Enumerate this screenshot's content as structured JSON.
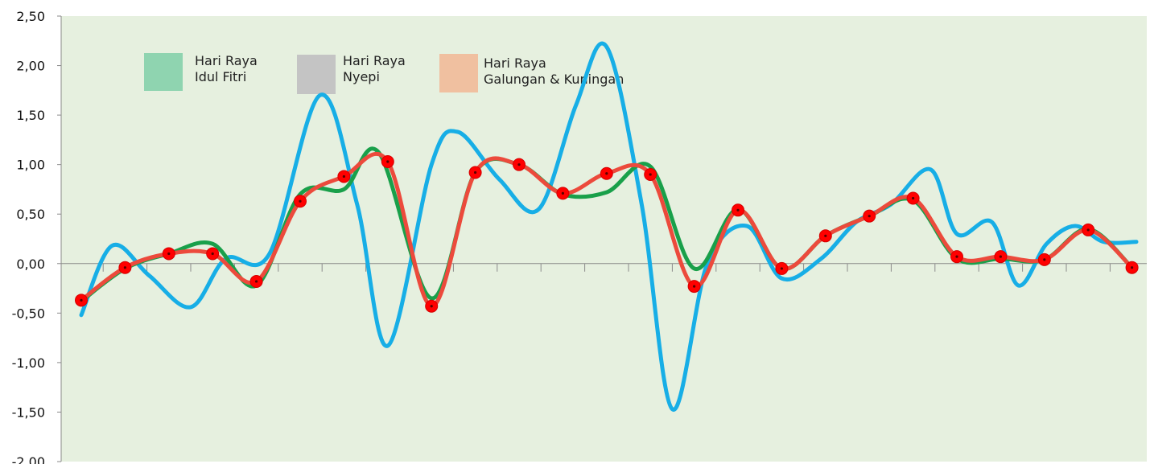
{
  "chart_data": {
    "type": "line",
    "title": "",
    "xlabel": "",
    "ylabel": "",
    "ylim": [
      -2.0,
      2.5
    ],
    "yticks": [
      -2.0,
      -1.5,
      -1.0,
      -0.5,
      0.0,
      0.5,
      1.0,
      1.5,
      2.0,
      2.5
    ],
    "ytick_labels": [
      "-2,00",
      "-1,50",
      "-1,00",
      "-0,50",
      "0,00",
      "0,50",
      "1,00",
      "1,50",
      "2,00",
      "2,50"
    ],
    "x_count": 25,
    "plot_background": "#e6f0df",
    "grid": false,
    "legend_position": "top-left",
    "highlight_bands": [
      {
        "label_lines": [
          "Hari Raya",
          "Idul Fitri"
        ],
        "color": "#8fd4b0"
      },
      {
        "label_lines": [
          "Hari Raya",
          "Nyepi"
        ],
        "color": "#c4c4c4"
      },
      {
        "label_lines": [
          "Hari Raya",
          "Galungan & Kuningan"
        ],
        "color": "#f0c0a0"
      }
    ],
    "series": [
      {
        "color": "#17aee6",
        "x": [
          0,
          0.7,
          1.55,
          2.5,
          3.3,
          4.3,
          5.45,
          6.3,
          7.0,
          8.0,
          8.6,
          9.55,
          10.45,
          11.3,
          12.0,
          12.8,
          13.5,
          14.3,
          15.2,
          16.0,
          16.9,
          17.7,
          18.5,
          19.4,
          20.0,
          20.8,
          21.4,
          22.05,
          22.7,
          23.35,
          24.1
        ],
        "values": [
          -0.52,
          0.18,
          -0.12,
          -0.44,
          0.05,
          0.1,
          1.7,
          0.6,
          -0.83,
          1.0,
          1.33,
          0.85,
          0.55,
          1.6,
          2.19,
          0.6,
          -1.47,
          0.0,
          0.38,
          -0.15,
          0.05,
          0.42,
          0.6,
          0.95,
          0.3,
          0.42,
          -0.22,
          0.2,
          0.38,
          0.22,
          0.22
        ]
      },
      {
        "color": "#19a04a",
        "x": [
          0,
          1,
          2,
          3,
          4,
          5,
          6,
          6.8,
          8,
          9,
          10,
          11,
          12,
          13,
          14,
          15,
          16,
          17,
          18,
          19,
          20,
          21,
          22,
          23,
          24
        ],
        "values": [
          -0.38,
          -0.05,
          0.1,
          0.2,
          -0.22,
          0.7,
          0.75,
          1.12,
          -0.35,
          0.92,
          1.0,
          0.7,
          0.72,
          0.98,
          -0.05,
          0.55,
          -0.05,
          0.28,
          0.48,
          0.64,
          0.05,
          0.05,
          0.04,
          0.35,
          -0.04
        ]
      },
      {
        "color": "#ec4a3c",
        "x": [
          0,
          1,
          2,
          3,
          4,
          5,
          6,
          7,
          8,
          9,
          10,
          11,
          12,
          13,
          14,
          15,
          16,
          17,
          18,
          19,
          20,
          21,
          22,
          23,
          24
        ],
        "values": [
          -0.37,
          -0.04,
          0.1,
          0.1,
          -0.18,
          0.63,
          0.88,
          1.03,
          -0.43,
          0.92,
          1.0,
          0.71,
          0.91,
          0.9,
          -0.23,
          0.54,
          -0.05,
          0.28,
          0.48,
          0.66,
          0.07,
          0.07,
          0.04,
          0.34,
          -0.04
        ],
        "markers": true,
        "marker_color": "#ff0000"
      }
    ]
  }
}
